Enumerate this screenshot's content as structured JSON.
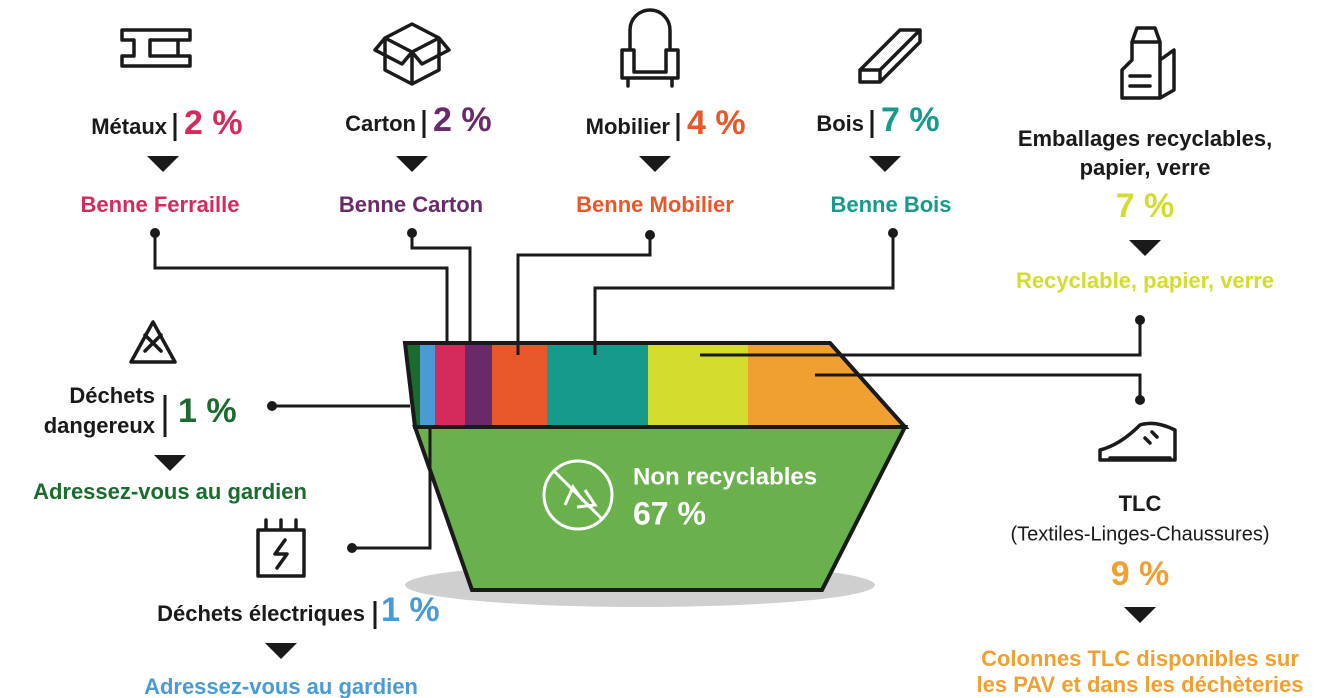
{
  "streams": [
    {
      "name": [
        "Métaux"
      ],
      "share": "2 %",
      "destination": [
        "Benne Ferraille"
      ]
    },
    {
      "name": [
        "Carton"
      ],
      "share": "2 %",
      "destination": [
        "Benne Carton"
      ]
    },
    {
      "name": [
        "Mobilier"
      ],
      "share": "4 %",
      "destination": [
        "Benne Mobilier"
      ]
    },
    {
      "name": [
        "Bois"
      ],
      "share": "7 %",
      "destination": [
        "Benne Bois"
      ]
    },
    {
      "name": [
        "Emballages recyclables,",
        "papier, verre"
      ],
      "share": "7 %",
      "destination": [
        "Recyclable, papier, verre"
      ]
    },
    {
      "name": [
        "Déchets",
        "dangereux"
      ],
      "share": "1 %",
      "destination": [
        "Adressez-vous au gardien"
      ]
    },
    {
      "name": [
        "Déchets électriques"
      ],
      "share": "1 %",
      "destination": [
        "Adressez-vous au gardien"
      ]
    },
    {
      "name": [
        "TLC"
      ],
      "note": "(Textiles-Linges-Chaussures)",
      "share": "9 %",
      "destination": [
        "Colonnes TLC disponibles sur",
        "les PAV et dans les déchèteries"
      ]
    }
  ],
  "center": {
    "label": "Non recyclables",
    "share": "67 %"
  }
}
